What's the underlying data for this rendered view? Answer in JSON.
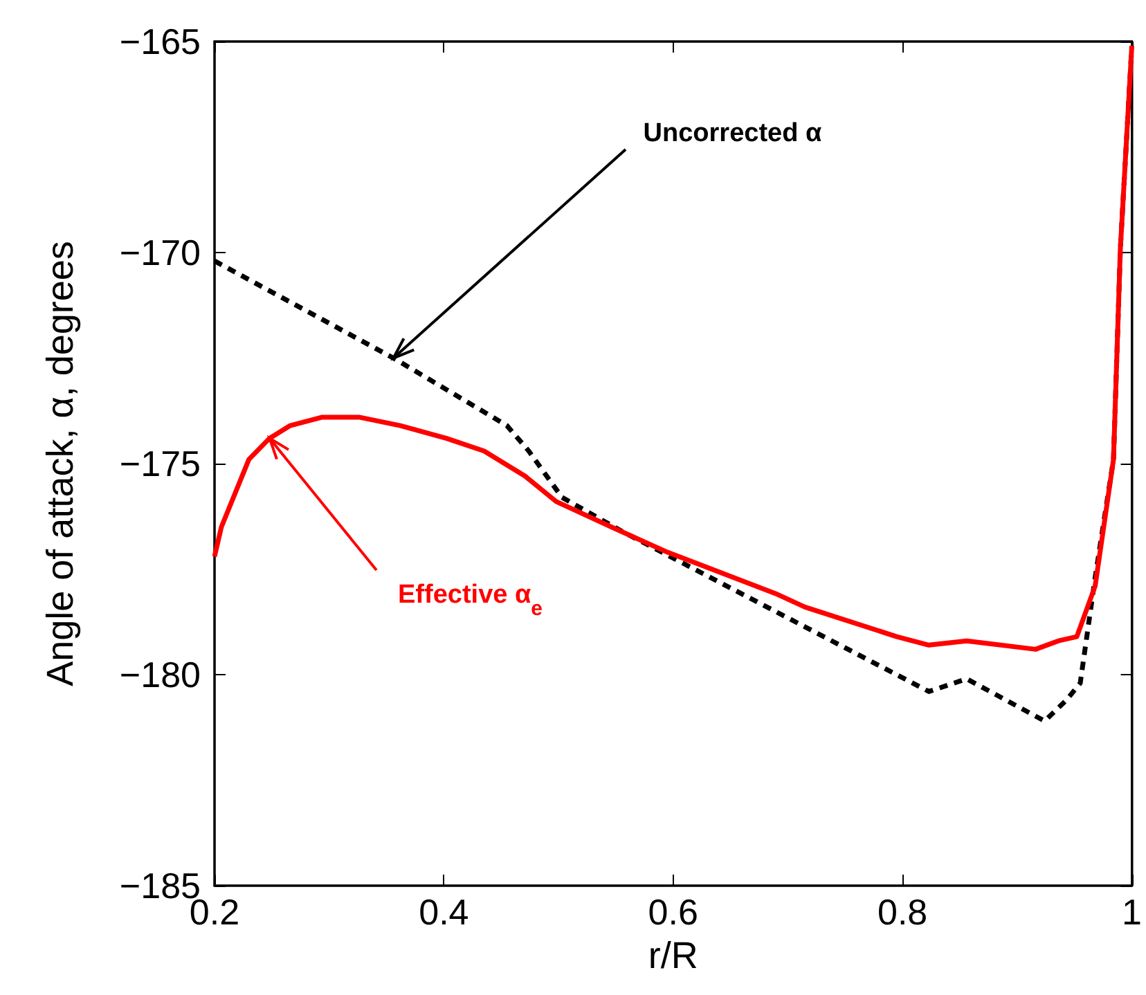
{
  "chart_data": {
    "type": "line",
    "xlabel": "r/R",
    "ylabel": "Angle of attack, α, degrees",
    "xlim": [
      0.2,
      1
    ],
    "xticks": [
      0.2,
      0.4,
      0.6,
      0.8,
      1
    ],
    "ylim": [
      -185,
      -165
    ],
    "yticks": [
      -185,
      -180,
      -175,
      -170,
      -165
    ],
    "grid": false,
    "marker": "none",
    "series": [
      {
        "color": "#000000",
        "line_style": "dashed",
        "x": [
          0.2,
          0.356,
          0.455,
          0.474,
          0.503,
          0.555,
          0.823,
          0.856,
          0.924,
          0.943,
          0.955,
          0.968,
          0.984,
          0.99,
          1.0
        ],
        "values": [
          -170.2,
          -172.5,
          -174.1,
          -174.7,
          -175.8,
          -176.6,
          -180.4,
          -180.1,
          -181.1,
          -180.6,
          -180.2,
          -177.7,
          -174.9,
          -169.9,
          -165.1
        ]
      },
      {
        "color": "#ff0000",
        "line_style": "solid",
        "x": [
          0.2,
          0.206,
          0.23,
          0.248,
          0.266,
          0.294,
          0.326,
          0.362,
          0.402,
          0.435,
          0.471,
          0.498,
          0.546,
          0.595,
          0.691,
          0.715,
          0.795,
          0.823,
          0.856,
          0.916,
          0.936,
          0.952,
          0.968,
          0.984,
          0.99,
          1.0
        ],
        "values": [
          -177.2,
          -176.5,
          -174.9,
          -174.4,
          -174.1,
          -173.9,
          -173.9,
          -174.1,
          -174.4,
          -174.7,
          -175.3,
          -175.9,
          -176.5,
          -177.1,
          -178.1,
          -178.4,
          -179.1,
          -179.3,
          -179.2,
          -179.4,
          -179.2,
          -179.1,
          -177.9,
          -174.9,
          -169.9,
          -165.1
        ]
      }
    ],
    "annotations": [
      {
        "text": "Uncorrected α",
        "x": 0.356,
        "y": -172.5
      },
      {
        "text": "Effective α$_{e}$",
        "x": 0.248,
        "y": -174.4
      }
    ]
  }
}
